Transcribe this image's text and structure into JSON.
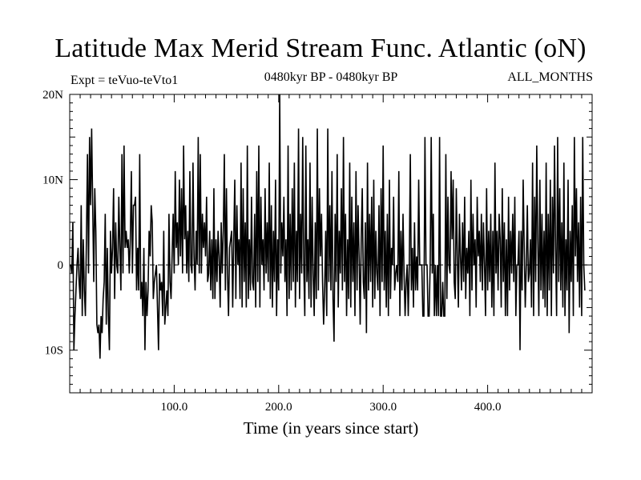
{
  "chart_data": {
    "type": "line",
    "title": "Latitude Max Merid Stream Func. Atlantic (oN)",
    "subtitle_left": "Expt = teVuo-teVto1",
    "subtitle_center": "0480kyr BP - 0480kyr BP",
    "subtitle_right": "ALL_MONTHS",
    "xlabel": "Time (in years since start)",
    "ylabel": "",
    "xlim": [
      0,
      500
    ],
    "ylim": [
      -15,
      20
    ],
    "x_ticks": [
      {
        "value": 100,
        "label": "100.0"
      },
      {
        "value": 200,
        "label": "200.0"
      },
      {
        "value": 300,
        "label": "300.0"
      },
      {
        "value": 400,
        "label": "400.0"
      }
    ],
    "y_ticks": [
      {
        "value": 20,
        "label": "20N"
      },
      {
        "value": 10,
        "label": "10N"
      },
      {
        "value": 0,
        "label": "0"
      },
      {
        "value": -10,
        "label": "10S"
      }
    ],
    "zero_line": "dashed",
    "grid": false,
    "series": [
      {
        "color": "#000000",
        "x_start": 1,
        "x_step": 1,
        "values": [
          0,
          -1,
          5,
          -10,
          -6,
          -3,
          0,
          2,
          -2,
          -4,
          7,
          -6,
          3,
          -3,
          -6,
          3,
          13,
          -1,
          15,
          7,
          16,
          7,
          -2,
          9,
          4,
          -7,
          -8,
          -7,
          -11,
          -6,
          -8,
          -4,
          -2,
          6,
          -7,
          2,
          -6,
          -10,
          4,
          -1,
          2,
          9,
          -4,
          5,
          0,
          -1,
          8,
          2,
          -3,
          13,
          -1,
          14,
          2,
          4,
          2,
          3,
          -1,
          3,
          11,
          -1,
          7,
          7,
          8,
          -3,
          2,
          -3,
          13,
          -4,
          -2,
          -6,
          2,
          -10,
          -2,
          -6,
          -3,
          4,
          1,
          7,
          5,
          -4,
          -2,
          -1,
          0,
          -5,
          -10,
          -1,
          -3,
          -2,
          -6,
          4,
          -7,
          -5,
          -3,
          -6,
          6,
          -2,
          -4,
          1,
          6,
          -1,
          11,
          2,
          5,
          0,
          10,
          1,
          9,
          -1,
          14,
          3,
          7,
          -1,
          4,
          -2,
          11,
          0,
          -1,
          12,
          1,
          -3,
          4,
          0,
          15,
          -1,
          13,
          -1,
          6,
          2,
          5,
          1,
          8,
          -2,
          -1,
          4,
          -3,
          3,
          -4,
          9,
          -4,
          3,
          -2,
          4,
          1,
          -5,
          5,
          -1,
          4,
          13,
          -3,
          9,
          -1,
          -6,
          2,
          3,
          4,
          -5,
          3,
          10,
          -4,
          7,
          0,
          3,
          -4,
          12,
          -5,
          9,
          -2,
          5,
          -5,
          14,
          -4,
          3,
          -3,
          8,
          -2,
          -3,
          6,
          -5,
          11,
          -2,
          14,
          -5,
          8,
          0,
          3,
          -3,
          9,
          -1,
          5,
          -2,
          12,
          -4,
          7,
          -5,
          4,
          -2,
          10,
          -6,
          3,
          -3,
          20,
          -1,
          5,
          1,
          8,
          -2,
          3,
          -6,
          14,
          -4,
          6,
          -3,
          9,
          -2,
          12,
          -5,
          4,
          -2,
          16,
          -4,
          6,
          -1,
          15,
          0,
          -6,
          14,
          -2,
          3,
          -4,
          12,
          -5,
          8,
          -1,
          -6,
          5,
          -4,
          16,
          -3,
          9,
          1,
          6,
          -2,
          -7,
          -3,
          4,
          -6,
          16,
          -2,
          7,
          -3,
          11,
          -4,
          -9,
          6,
          -2,
          13,
          -5,
          4,
          -1,
          9,
          -3,
          15,
          -2,
          6,
          -6,
          3,
          -4,
          12,
          -5,
          8,
          -2,
          5,
          -6,
          11,
          -3,
          7,
          1,
          -7,
          3,
          9,
          -2,
          -4,
          5,
          -8,
          12,
          -3,
          6,
          -2,
          8,
          -5,
          10,
          -4,
          4,
          -1,
          -3,
          7,
          -6,
          9,
          -2,
          14,
          -3,
          4,
          -5,
          6,
          -6,
          10,
          -4,
          2,
          0,
          8,
          -3,
          -1,
          0,
          -2,
          11,
          -6,
          4,
          -3,
          6,
          -1,
          -6,
          -2,
          0,
          -6,
          0,
          13,
          -3,
          2,
          -5,
          5,
          -3,
          1,
          -3,
          10,
          0,
          0,
          0,
          -6,
          -6,
          15,
          0,
          0,
          -6,
          -6,
          0,
          15,
          -1,
          6,
          -6,
          0,
          -6,
          0,
          -6,
          15,
          -6,
          -6,
          -2,
          -6,
          -6,
          13,
          -4,
          8,
          0,
          -1,
          11,
          3,
          10,
          -2,
          -4,
          9,
          1,
          -5,
          6,
          1,
          -3,
          5,
          -2,
          8,
          -4,
          2,
          -1,
          4,
          -6,
          10,
          -3,
          6,
          0,
          3,
          -5,
          8,
          1,
          4,
          -2,
          6,
          -3,
          5,
          0,
          -6,
          9,
          -3,
          4,
          -2,
          6,
          -5,
          4,
          -6,
          12,
          -1,
          4,
          -3,
          6,
          3,
          -5,
          9,
          -2,
          5,
          -6,
          3,
          -6,
          8,
          -3,
          4,
          -1,
          6,
          -2,
          8,
          -6,
          0,
          0,
          4,
          -10,
          4,
          -3,
          10,
          2,
          -5,
          0,
          7,
          -2,
          -1,
          3,
          -5,
          12,
          -6,
          8,
          -2,
          14,
          3,
          -6,
          10,
          -3,
          6,
          -4,
          4,
          -5,
          12,
          -6,
          6,
          -3,
          10,
          -6,
          8,
          -1,
          14,
          2,
          -6,
          15,
          -2,
          9,
          -3,
          5,
          -5,
          12,
          -6,
          3,
          -3,
          10,
          -8,
          4,
          -2,
          7,
          -6,
          15,
          1,
          9,
          -2,
          5,
          -5,
          8,
          -6,
          15,
          0,
          -3
        ]
      }
    ]
  }
}
